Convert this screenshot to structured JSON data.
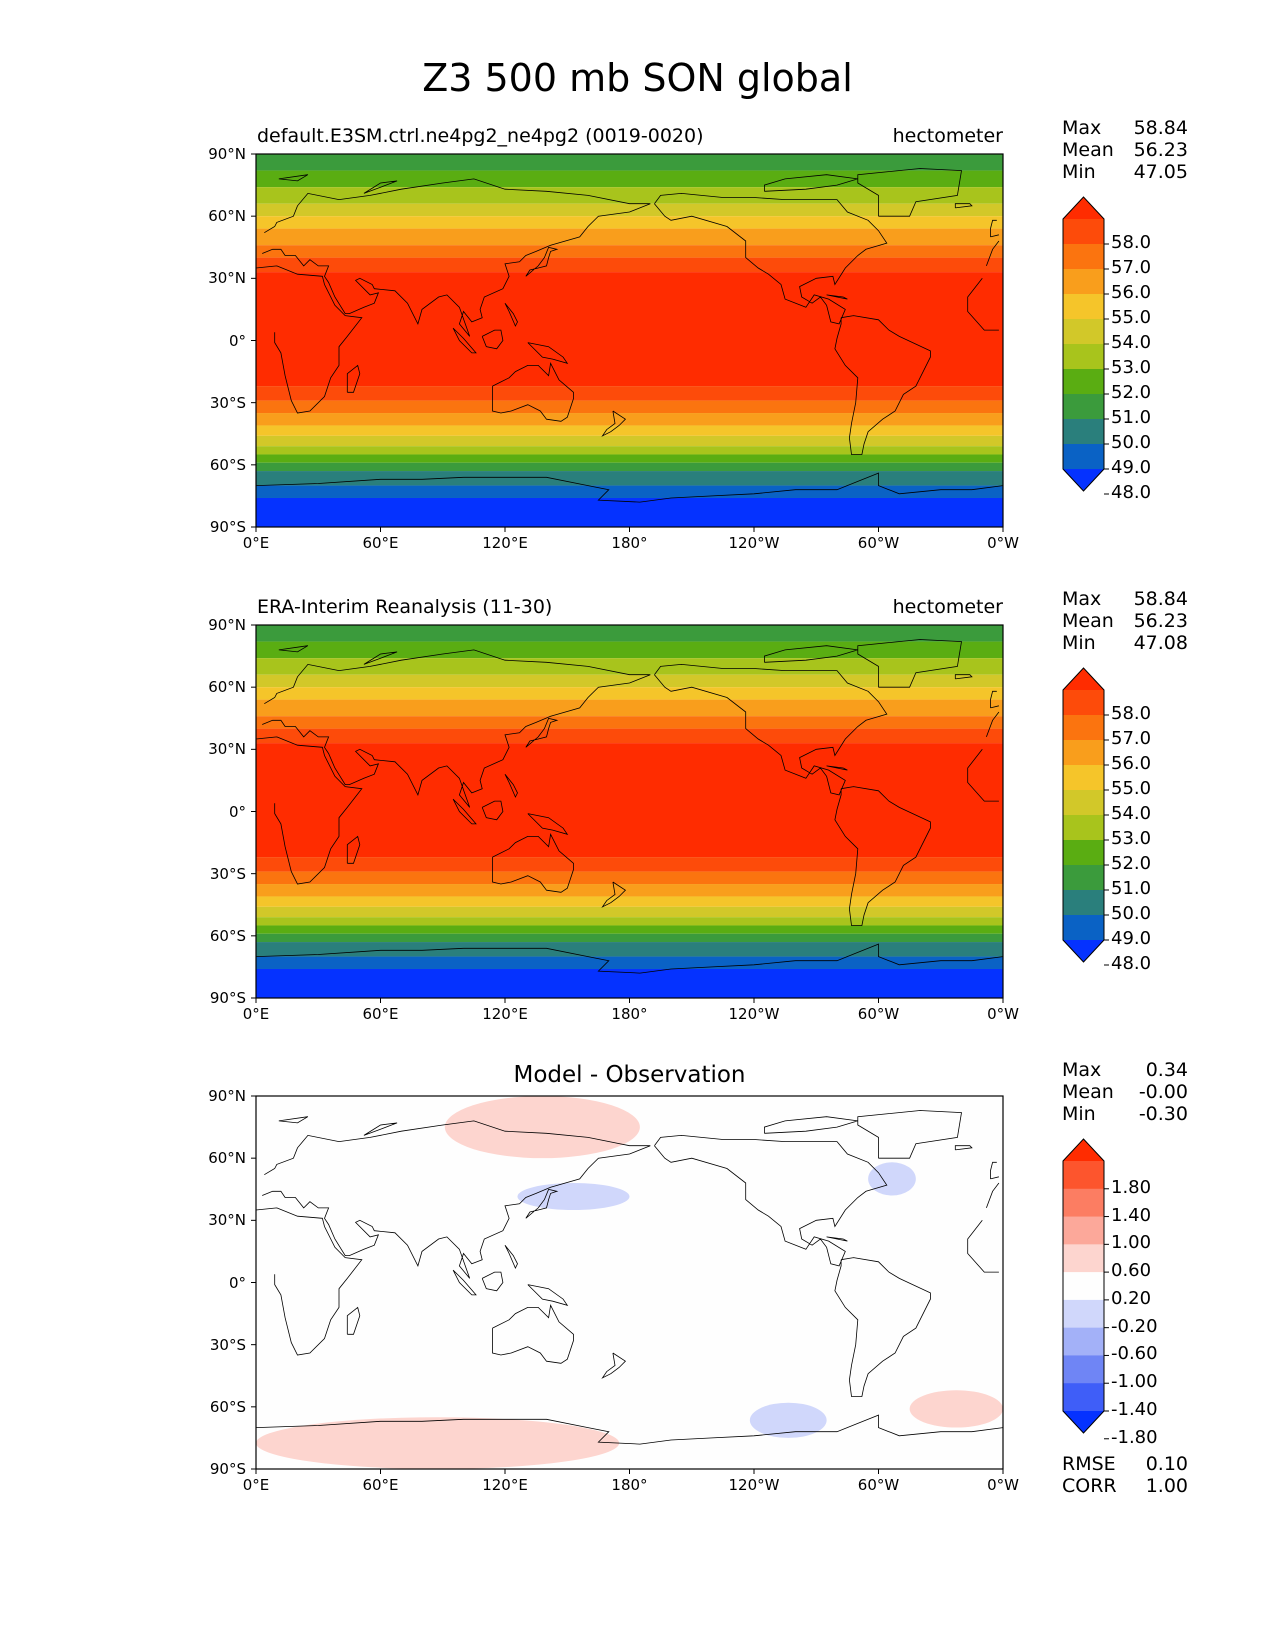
{
  "title": "Z3 500 mb SON global",
  "panels": [
    {
      "id": "test",
      "title_left": "default.E3SM.ctrl.ne4pg2_ne4pg2 (0019-0020)",
      "title_right": "hectometer",
      "title_center": "",
      "stats": [
        {
          "label": "Max",
          "value": "58.84"
        },
        {
          "label": "Mean",
          "value": "56.23"
        },
        {
          "label": "Min",
          "value": "47.05"
        }
      ],
      "colorbar_ticks": [
        "58.0",
        "57.0",
        "56.0",
        "55.0",
        "54.0",
        "53.0",
        "52.0",
        "51.0",
        "50.0",
        "49.0",
        "48.0"
      ],
      "colors": [
        "#0532ff",
        "#0a62c5",
        "#2a7f7c",
        "#3b9b3c",
        "#5aad12",
        "#a8c41c",
        "#d2c829",
        "#f5c52a",
        "#f99e1c",
        "#fb740f",
        "#fd4b0a",
        "#ff2c00"
      ]
    },
    {
      "id": "reference",
      "title_left": "ERA-Interim Reanalysis (11-30)",
      "title_right": "hectometer",
      "title_center": "",
      "stats": [
        {
          "label": "Max",
          "value": "58.84"
        },
        {
          "label": "Mean",
          "value": "56.23"
        },
        {
          "label": "Min",
          "value": "47.08"
        }
      ],
      "colorbar_ticks": [
        "58.0",
        "57.0",
        "56.0",
        "55.0",
        "54.0",
        "53.0",
        "52.0",
        "51.0",
        "50.0",
        "49.0",
        "48.0"
      ],
      "colors": [
        "#0532ff",
        "#0a62c5",
        "#2a7f7c",
        "#3b9b3c",
        "#5aad12",
        "#a8c41c",
        "#d2c829",
        "#f5c52a",
        "#f99e1c",
        "#fb740f",
        "#fd4b0a",
        "#ff2c00"
      ]
    },
    {
      "id": "difference",
      "title_left": "",
      "title_right": "",
      "title_center": "Model - Observation",
      "stats": [
        {
          "label": "Max",
          "value": "0.34"
        },
        {
          "label": "Mean",
          "value": "-0.00"
        },
        {
          "label": "Min",
          "value": "-0.30"
        }
      ],
      "colorbar_ticks": [
        "1.80",
        "1.40",
        "1.00",
        "0.60",
        "0.20",
        "-0.20",
        "-0.60",
        "-1.00",
        "-1.40",
        "-1.80"
      ],
      "colors": [
        "#0532ff",
        "#3f5ef8",
        "#6f85f5",
        "#a3b1f8",
        "#d0d7fb",
        "#fefefe",
        "#fdd5cf",
        "#fca89a",
        "#fc7d62",
        "#fd552d",
        "#ff2c00"
      ],
      "metrics": [
        {
          "label": "RMSE",
          "value": "0.10"
        },
        {
          "label": "CORR",
          "value": "1.00"
        }
      ]
    }
  ],
  "lat_ticks": [
    "90°N",
    "60°N",
    "30°N",
    "0°",
    "30°S",
    "60°S",
    "90°S"
  ],
  "lon_ticks": [
    "0°E",
    "60°E",
    "120°E",
    "180°",
    "120°W",
    "60°W",
    "0°W"
  ],
  "map_data": {
    "variable": "Z3",
    "level": "500 mb",
    "season": "SON",
    "units": "hectometer",
    "lon_range": [
      0,
      360
    ],
    "lat_range": [
      -90,
      90
    ],
    "test_bands": [
      {
        "lat_from": 90,
        "lat_to": 82,
        "value": 50.0
      },
      {
        "lat_from": 82,
        "lat_to": 74,
        "value": 51.0
      },
      {
        "lat_from": 74,
        "lat_to": 66,
        "value": 52.0
      },
      {
        "lat_from": 66,
        "lat_to": 60,
        "value": 53.0
      },
      {
        "lat_from": 60,
        "lat_to": 54,
        "value": 54.0
      },
      {
        "lat_from": 54,
        "lat_to": 46,
        "value": 55.0
      },
      {
        "lat_from": 46,
        "lat_to": 40,
        "value": 56.0
      },
      {
        "lat_from": 40,
        "lat_to": 33,
        "value": 57.0
      },
      {
        "lat_from": 33,
        "lat_to": -22,
        "value": 58.0
      },
      {
        "lat_from": -22,
        "lat_to": -29,
        "value": 57.0
      },
      {
        "lat_from": -29,
        "lat_to": -35,
        "value": 56.0
      },
      {
        "lat_from": -35,
        "lat_to": -41,
        "value": 55.0
      },
      {
        "lat_from": -41,
        "lat_to": -46,
        "value": 54.0
      },
      {
        "lat_from": -46,
        "lat_to": -51,
        "value": 53.0
      },
      {
        "lat_from": -51,
        "lat_to": -55,
        "value": 52.0
      },
      {
        "lat_from": -55,
        "lat_to": -59,
        "value": 51.0
      },
      {
        "lat_from": -59,
        "lat_to": -63,
        "value": 50.0
      },
      {
        "lat_from": -63,
        "lat_to": -70,
        "value": 49.0
      },
      {
        "lat_from": -70,
        "lat_to": -76,
        "value": 48.0
      },
      {
        "lat_from": -76,
        "lat_to": -90,
        "value": 47.5
      }
    ],
    "diff_patches": [
      {
        "sign": "positive",
        "region": "North Pacific / Arctic",
        "lon": [
          91,
          185
        ],
        "lat": [
          60,
          90
        ],
        "value": 0.34
      },
      {
        "sign": "negative",
        "region": "Northwest Pacific",
        "lon": [
          126,
          180
        ],
        "lat": [
          35,
          48
        ],
        "value": -0.3
      },
      {
        "sign": "negative",
        "region": "North Atlantic",
        "lon": [
          295,
          318
        ],
        "lat": [
          42,
          58
        ],
        "value": -0.3
      },
      {
        "sign": "negative",
        "region": "Southeast Pacific",
        "lon": [
          238,
          275
        ],
        "lat": [
          -75,
          -58
        ],
        "value": -0.3
      },
      {
        "sign": "positive",
        "region": "South Atlantic",
        "lon": [
          315,
          360
        ],
        "lat": [
          -70,
          -52
        ],
        "value": 0.3
      },
      {
        "sign": "positive",
        "region": "Southern Ocean / Antarctica",
        "lon": [
          0,
          175
        ],
        "lat": [
          -90,
          -65
        ],
        "value": 0.3
      }
    ]
  }
}
